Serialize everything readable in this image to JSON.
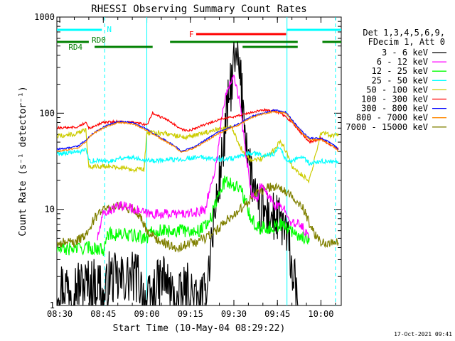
{
  "chart_data": {
    "type": "line",
    "title": "RHESSI Observing Summary Count Rates",
    "xlabel": "Start Time (10-May-04 08:29:22)",
    "ylabel": "Count Rate (s⁻¹ detector⁻¹)",
    "ylog": true,
    "ylim": [
      1,
      1000
    ],
    "xlim_minutes": [
      -1,
      97
    ],
    "x_ticks": [
      {
        "min": 0,
        "label": "08:30"
      },
      {
        "min": 15,
        "label": "08:45"
      },
      {
        "min": 30,
        "label": "09:00"
      },
      {
        "min": 45,
        "label": "09:15"
      },
      {
        "min": 60,
        "label": "09:30"
      },
      {
        "min": 75,
        "label": "09:45"
      },
      {
        "min": 90,
        "label": "10:00"
      }
    ],
    "y_ticks": [
      {
        "v": 1,
        "label": "1"
      },
      {
        "v": 10,
        "label": "10"
      },
      {
        "v": 100,
        "label": "100"
      },
      {
        "v": 1000,
        "label": "1000"
      }
    ],
    "legend_position": "right",
    "legend_header": [
      "Det 1,3,4,5,6,9,",
      "FDecim 1, Att 0"
    ],
    "series": [
      {
        "name": "3 - 6 keV",
        "color": "#000000",
        "points": [
          [
            -1,
            1.6
          ],
          [
            14,
            1.7
          ],
          [
            15,
            1
          ],
          [
            17,
            2.0
          ],
          [
            20,
            1.8
          ],
          [
            27,
            2
          ],
          [
            30,
            1
          ],
          [
            32,
            1.3
          ],
          [
            36,
            2
          ],
          [
            40,
            1
          ],
          [
            44,
            1.5
          ],
          [
            48,
            1
          ],
          [
            50,
            1.2
          ],
          [
            52,
            4
          ],
          [
            54,
            12
          ],
          [
            56,
            35
          ],
          [
            58,
            120
          ],
          [
            60,
            320
          ],
          [
            61.5,
            330
          ],
          [
            63,
            140
          ],
          [
            65,
            35
          ],
          [
            68,
            10
          ],
          [
            71,
            9
          ],
          [
            74,
            8
          ],
          [
            77,
            7
          ],
          [
            79,
            4
          ],
          [
            80,
            2.5
          ],
          [
            82,
            1
          ]
        ]
      },
      {
        "name": "6 - 12 keV",
        "color": "#ff00ff",
        "points": [
          [
            13,
            5
          ],
          [
            15,
            9
          ],
          [
            18,
            10
          ],
          [
            22,
            11
          ],
          [
            30,
            9
          ],
          [
            40,
            9
          ],
          [
            46,
            9
          ],
          [
            50,
            10
          ],
          [
            54,
            30
          ],
          [
            56,
            100
          ],
          [
            58,
            190
          ],
          [
            60,
            260
          ],
          [
            62,
            130
          ],
          [
            64,
            40
          ],
          [
            66,
            15
          ],
          [
            68,
            12
          ],
          [
            69,
            18
          ],
          [
            71,
            15
          ],
          [
            74,
            11
          ],
          [
            78,
            10
          ],
          [
            80,
            7
          ],
          [
            83,
            7
          ],
          [
            86,
            5
          ]
        ]
      },
      {
        "name": "12 - 25 keV",
        "color": "#00ff00",
        "points": [
          [
            -1,
            3.8
          ],
          [
            10,
            4
          ],
          [
            15,
            3.8
          ],
          [
            16,
            5.5
          ],
          [
            22,
            5.5
          ],
          [
            30,
            5
          ],
          [
            31,
            6
          ],
          [
            40,
            6
          ],
          [
            48,
            6
          ],
          [
            52,
            8
          ],
          [
            55,
            15
          ],
          [
            57,
            20
          ],
          [
            60,
            18
          ],
          [
            62,
            17
          ],
          [
            64,
            12
          ],
          [
            66,
            8
          ],
          [
            68,
            6.5
          ],
          [
            73,
            6.5
          ],
          [
            76,
            7
          ],
          [
            80,
            6
          ],
          [
            84,
            5
          ],
          [
            86,
            5
          ]
        ]
      },
      {
        "name": "25 - 50 keV",
        "color": "#00ffff",
        "points": [
          [
            -1,
            38
          ],
          [
            8,
            40
          ],
          [
            9,
            42
          ],
          [
            10,
            32
          ],
          [
            18,
            32
          ],
          [
            20,
            34
          ],
          [
            25,
            35
          ],
          [
            29,
            33
          ],
          [
            30,
            33
          ],
          [
            31,
            32
          ],
          [
            40,
            33
          ],
          [
            44,
            34
          ],
          [
            48,
            35
          ],
          [
            52,
            34
          ],
          [
            55,
            33
          ],
          [
            60,
            34
          ],
          [
            62,
            35
          ],
          [
            65,
            38
          ],
          [
            68,
            38
          ],
          [
            70,
            36
          ],
          [
            74,
            38
          ],
          [
            76,
            45
          ],
          [
            78,
            32
          ],
          [
            80,
            32
          ],
          [
            84,
            35
          ],
          [
            86,
            30
          ],
          [
            92,
            32
          ],
          [
            96,
            30
          ]
        ]
      },
      {
        "name": "50 - 100 keV",
        "color": "#cccc00",
        "points": [
          [
            -1,
            58
          ],
          [
            5,
            60
          ],
          [
            8,
            65
          ],
          [
            9,
            68
          ],
          [
            10,
            28
          ],
          [
            18,
            28
          ],
          [
            25,
            26
          ],
          [
            29,
            26
          ],
          [
            30,
            62
          ],
          [
            36,
            63
          ],
          [
            40,
            58
          ],
          [
            44,
            56
          ],
          [
            48,
            60
          ],
          [
            52,
            65
          ],
          [
            56,
            70
          ],
          [
            59,
            72
          ],
          [
            60,
            64
          ],
          [
            62,
            45
          ],
          [
            66,
            32
          ],
          [
            70,
            34
          ],
          [
            74,
            42
          ],
          [
            76,
            52
          ],
          [
            78,
            40
          ],
          [
            80,
            28
          ],
          [
            84,
            22
          ],
          [
            86,
            20
          ],
          [
            90,
            62
          ],
          [
            96,
            58
          ]
        ]
      },
      {
        "name": "100 - 300 keV",
        "color": "#ff0000",
        "points": [
          [
            -1,
            70
          ],
          [
            6,
            72
          ],
          [
            9,
            80
          ],
          [
            10,
            70
          ],
          [
            15,
            80
          ],
          [
            20,
            82
          ],
          [
            25,
            80
          ],
          [
            28,
            78
          ],
          [
            30,
            75
          ],
          [
            32,
            100
          ],
          [
            38,
            82
          ],
          [
            42,
            68
          ],
          [
            44,
            65
          ],
          [
            48,
            72
          ],
          [
            52,
            80
          ],
          [
            56,
            88
          ],
          [
            60,
            92
          ],
          [
            65,
            100
          ],
          [
            70,
            108
          ],
          [
            74,
            106
          ],
          [
            76,
            100
          ],
          [
            78,
            92
          ],
          [
            80,
            80
          ],
          [
            84,
            58
          ],
          [
            86,
            50
          ],
          [
            88,
            52
          ],
          [
            90,
            55
          ],
          [
            94,
            45
          ],
          [
            96,
            42
          ]
        ]
      },
      {
        "name": "300 - 800 keV",
        "color": "#0000ff",
        "points": [
          [
            -1,
            42
          ],
          [
            6,
            45
          ],
          [
            9,
            52
          ],
          [
            11,
            60
          ],
          [
            15,
            72
          ],
          [
            20,
            82
          ],
          [
            25,
            80
          ],
          [
            30,
            68
          ],
          [
            35,
            55
          ],
          [
            40,
            45
          ],
          [
            42,
            40
          ],
          [
            46,
            44
          ],
          [
            50,
            52
          ],
          [
            54,
            62
          ],
          [
            58,
            70
          ],
          [
            62,
            78
          ],
          [
            66,
            92
          ],
          [
            70,
            100
          ],
          [
            74,
            108
          ],
          [
            78,
            102
          ],
          [
            80,
            85
          ],
          [
            84,
            62
          ],
          [
            86,
            55
          ],
          [
            90,
            55
          ],
          [
            94,
            48
          ],
          [
            96,
            42
          ]
        ]
      },
      {
        "name": "800 - 7000 keV",
        "color": "#ff8800",
        "points": [
          [
            -1,
            40
          ],
          [
            6,
            43
          ],
          [
            9,
            50
          ],
          [
            11,
            60
          ],
          [
            15,
            70
          ],
          [
            20,
            80
          ],
          [
            25,
            78
          ],
          [
            30,
            66
          ],
          [
            35,
            54
          ],
          [
            40,
            44
          ],
          [
            42,
            39
          ],
          [
            46,
            43
          ],
          [
            50,
            50
          ],
          [
            54,
            60
          ],
          [
            58,
            68
          ],
          [
            62,
            76
          ],
          [
            66,
            90
          ],
          [
            70,
            98
          ],
          [
            74,
            104
          ],
          [
            78,
            100
          ],
          [
            80,
            82
          ],
          [
            84,
            60
          ],
          [
            86,
            53
          ],
          [
            90,
            53
          ],
          [
            94,
            46
          ],
          [
            96,
            40
          ]
        ]
      },
      {
        "name": "7000 - 15000 keV",
        "color": "#808000",
        "points": [
          [
            -1,
            4.5
          ],
          [
            5,
            4.5
          ],
          [
            9,
            5.5
          ],
          [
            12,
            8
          ],
          [
            15,
            10
          ],
          [
            20,
            11
          ],
          [
            25,
            10
          ],
          [
            28,
            8
          ],
          [
            30,
            6
          ],
          [
            33,
            5
          ],
          [
            36,
            4.5
          ],
          [
            40,
            4
          ],
          [
            46,
            4.5
          ],
          [
            50,
            5
          ],
          [
            54,
            6
          ],
          [
            58,
            8
          ],
          [
            62,
            10
          ],
          [
            65,
            12
          ],
          [
            68,
            15
          ],
          [
            72,
            17
          ],
          [
            76,
            17
          ],
          [
            80,
            14
          ],
          [
            84,
            10
          ],
          [
            87,
            6
          ],
          [
            90,
            4.5
          ],
          [
            96,
            4.5
          ]
        ]
      }
    ],
    "flag_bars": [
      {
        "label": "N",
        "color": "#00ffff",
        "segments": [
          [
            -1,
            14.5
          ],
          [
            78.3,
            97
          ]
        ]
      },
      {
        "label": "F",
        "color": "#ff0000",
        "segments": [
          [
            47,
            78
          ]
        ]
      },
      {
        "label": "RD0",
        "color": "#008000",
        "segments": [
          [
            -1,
            10
          ],
          [
            38,
            82
          ],
          [
            90.5,
            97
          ]
        ]
      },
      {
        "label": "RD4",
        "color": "#008000",
        "segments": [
          [
            12,
            32
          ],
          [
            63,
            82
          ]
        ]
      }
    ],
    "vlines": [
      {
        "min": 15.5,
        "color": "#00ffff",
        "style": "dashed"
      },
      {
        "min": 30,
        "color": "#00ffff",
        "style": "solid"
      },
      {
        "min": 78.3,
        "color": "#00ffff",
        "style": "solid"
      },
      {
        "min": 95,
        "color": "#00ffff",
        "style": "dashed"
      }
    ]
  },
  "footer": {
    "timestamp": "17-Oct-2021 09:41"
  }
}
